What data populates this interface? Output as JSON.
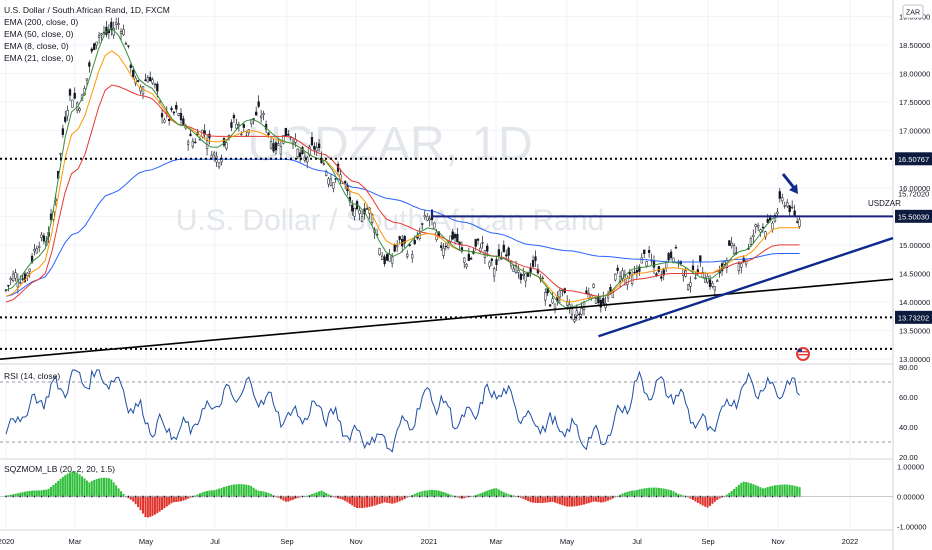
{
  "header": {
    "title": "U.S. Dollar / South African Rand, 1D, FXCM",
    "indicators": [
      "EMA (200, close, 0)",
      "EMA (50, close, 0)",
      "EMA (8, close, 0)",
      "EMA (21, close, 0)"
    ]
  },
  "watermark": {
    "symbol": "USDZAR, 1D",
    "name": "U.S. Dollar / South African Rand"
  },
  "currency_button": "ZAR",
  "symbol_label": "USDZAR",
  "colors": {
    "candle": "#131722",
    "ema200": "#2962ff",
    "ema50": "#e53935",
    "ema21": "#ff9800",
    "ema8": "#388e3c",
    "level_line": "#1a237e",
    "trendline_blue": "#0d2a8c",
    "trendline_black": "#000000",
    "price_tag_bg": "#0d1b3e",
    "rsi_line": "#1e4fa3",
    "sqz_pos": "#2fbf3a",
    "sqz_neg": "#e0322b",
    "arrow": "#0d2a8c"
  },
  "chart_data": [
    {
      "type": "candlestick",
      "title": "U.S. Dollar / South African Rand, 1D, FXCM",
      "x_tick_labels": [
        "2020",
        "Mar",
        "May",
        "Jul",
        "Sep",
        "Nov",
        "2021",
        "Mar",
        "May",
        "Jul",
        "Sep",
        "Nov",
        "2022"
      ],
      "y_tick_labels": [
        "19.00000",
        "18.50000",
        "18.00000",
        "17.50000",
        "17.00000",
        "16.50000",
        "16.00000",
        "15.50000",
        "15.00000",
        "14.50000",
        "14.00000",
        "13.50000",
        "13.00000"
      ],
      "ylim": [
        12.95,
        19.2
      ],
      "close_series": {
        "x": [
          "2020-01",
          "2020-02",
          "2020-03",
          "2020-04",
          "2020-05",
          "2020-06",
          "2020-07",
          "2020-08",
          "2020-09",
          "2020-10",
          "2020-11",
          "2020-12",
          "2021-01",
          "2021-02",
          "2021-03",
          "2021-04",
          "2021-05",
          "2021-06",
          "2021-07",
          "2021-08",
          "2021-09",
          "2021-10",
          "2021-11"
        ],
        "values": [
          14.2,
          14.9,
          17.6,
          18.9,
          17.8,
          17.1,
          16.7,
          17.2,
          16.8,
          16.5,
          15.7,
          14.8,
          15.3,
          14.9,
          14.8,
          14.5,
          13.9,
          14.1,
          14.6,
          14.7,
          14.4,
          14.9,
          15.6
        ]
      },
      "horizontal_levels": [
        {
          "value": 16.50767,
          "label": "16.50767",
          "style": "dotted"
        },
        {
          "value": 15.5003,
          "label": "15.50030",
          "style": "solid"
        },
        {
          "value": 13.73202,
          "label": "13.73202",
          "style": "dotted"
        },
        {
          "value": 13.18,
          "label": "",
          "style": "dotted"
        }
      ],
      "last_price_label": "15.72020",
      "series": [
        {
          "name": "EMA (200, close, 0)",
          "values": [
            14.1,
            14.4,
            15.2,
            15.9,
            16.3,
            16.5,
            16.5,
            16.5,
            16.5,
            16.3,
            16.0,
            15.8,
            15.6,
            15.4,
            15.2,
            15.0,
            14.9,
            14.8,
            14.75,
            14.7,
            14.7,
            14.75,
            14.85
          ]
        },
        {
          "name": "EMA (50, close, 0)",
          "values": [
            14.0,
            14.4,
            16.3,
            17.8,
            17.6,
            17.1,
            16.9,
            16.9,
            16.9,
            16.6,
            16.1,
            15.4,
            15.2,
            15.0,
            14.8,
            14.6,
            14.2,
            14.1,
            14.4,
            14.5,
            14.5,
            14.7,
            15.0
          ]
        },
        {
          "name": "EMA (21, close, 0)",
          "values": [
            14.1,
            14.6,
            17.0,
            18.4,
            17.7,
            17.1,
            16.8,
            17.0,
            16.8,
            16.5,
            15.9,
            15.0,
            15.2,
            14.9,
            14.8,
            14.5,
            14.0,
            14.1,
            14.5,
            14.6,
            14.5,
            14.8,
            15.3
          ]
        },
        {
          "name": "EMA (8, close, 0)",
          "values": [
            14.2,
            14.8,
            17.4,
            18.8,
            17.8,
            17.1,
            16.7,
            17.2,
            16.8,
            16.5,
            15.7,
            14.8,
            15.3,
            14.9,
            14.8,
            14.5,
            13.9,
            14.1,
            14.6,
            14.7,
            14.4,
            14.9,
            15.5
          ]
        }
      ]
    },
    {
      "type": "line",
      "title": "RSI (14, close)",
      "y_tick_labels": [
        "80.00",
        "60.00",
        "40.00",
        "20.00"
      ],
      "ylim": [
        20,
        80
      ],
      "reference_lines": [
        70,
        30
      ],
      "x": [
        "2020-01",
        "2020-02",
        "2020-03",
        "2020-04",
        "2020-05",
        "2020-06",
        "2020-07",
        "2020-08",
        "2020-09",
        "2020-10",
        "2020-11",
        "2020-12",
        "2021-01",
        "2021-02",
        "2021-03",
        "2021-04",
        "2021-05",
        "2021-06",
        "2021-07",
        "2021-08",
        "2021-09",
        "2021-10",
        "2021-11"
      ],
      "values": [
        38,
        60,
        72,
        74,
        44,
        35,
        56,
        66,
        46,
        52,
        34,
        30,
        62,
        42,
        66,
        44,
        38,
        30,
        68,
        64,
        36,
        68,
        66
      ]
    },
    {
      "type": "bar",
      "title": "SQZMOM_LB (20, 2, 20, 1.5)",
      "y_tick_labels": [
        "1.00000",
        "0.00000",
        "-1.00000"
      ],
      "ylim": [
        -1.05,
        1.15
      ],
      "x": [
        "2020-01",
        "2020-02",
        "2020-03",
        "2020-04",
        "2020-05",
        "2020-06",
        "2020-07",
        "2020-08",
        "2020-09",
        "2020-10",
        "2020-11",
        "2020-12",
        "2021-01",
        "2021-02",
        "2021-03",
        "2021-04",
        "2021-05",
        "2021-06",
        "2021-07",
        "2021-08",
        "2021-09",
        "2021-10",
        "2021-11"
      ],
      "values": [
        0.05,
        0.25,
        0.9,
        0.6,
        -0.75,
        -0.2,
        0.35,
        0.45,
        -0.2,
        0.2,
        -0.4,
        -0.3,
        0.35,
        -0.1,
        0.3,
        -0.2,
        -0.35,
        -0.25,
        0.35,
        0.25,
        -0.4,
        0.5,
        0.4
      ]
    }
  ]
}
